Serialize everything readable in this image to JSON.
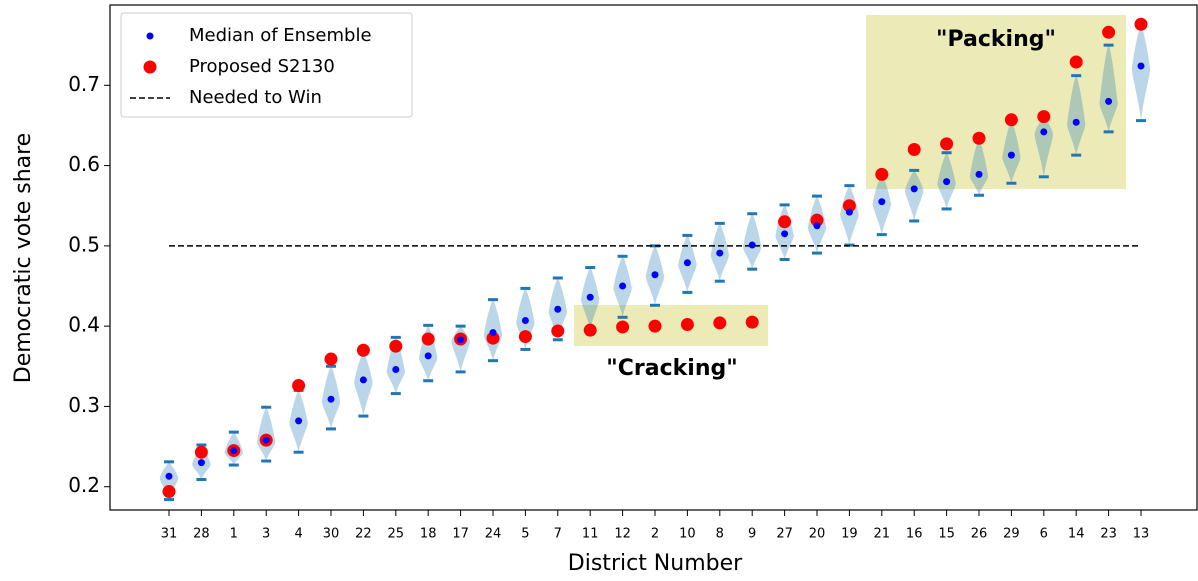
{
  "chart_data": {
    "type": "violin",
    "xlabel": "District Number",
    "ylabel": "Democratic vote share",
    "categories": [
      "31",
      "28",
      "1",
      "3",
      "4",
      "30",
      "22",
      "25",
      "18",
      "17",
      "24",
      "5",
      "7",
      "11",
      "12",
      "2",
      "10",
      "8",
      "9",
      "27",
      "20",
      "19",
      "21",
      "16",
      "15",
      "26",
      "29",
      "6",
      "14",
      "23",
      "13"
    ],
    "ensemble_min": [
      0.184,
      0.209,
      0.227,
      0.232,
      0.243,
      0.272,
      0.288,
      0.316,
      0.332,
      0.343,
      0.357,
      0.371,
      0.383,
      0.395,
      0.411,
      0.426,
      0.442,
      0.456,
      0.471,
      0.483,
      0.491,
      0.501,
      0.514,
      0.531,
      0.546,
      0.563,
      0.578,
      0.586,
      0.613,
      0.642,
      0.656
    ],
    "ensemble_max": [
      0.231,
      0.252,
      0.268,
      0.299,
      0.32,
      0.35,
      0.368,
      0.386,
      0.401,
      0.4,
      0.433,
      0.447,
      0.46,
      0.473,
      0.487,
      0.5,
      0.513,
      0.528,
      0.54,
      0.551,
      0.562,
      0.575,
      0.59,
      0.594,
      0.616,
      0.633,
      0.656,
      0.661,
      0.712,
      0.75,
      0.775
    ],
    "violin_color": "#1f77b4",
    "series": [
      {
        "name": "Median of Ensemble",
        "color": "#0000ff",
        "values": [
          0.213,
          0.23,
          0.245,
          0.258,
          0.282,
          0.309,
          0.333,
          0.346,
          0.363,
          0.383,
          0.392,
          0.407,
          0.421,
          0.436,
          0.45,
          0.464,
          0.479,
          0.491,
          0.501,
          0.515,
          0.525,
          0.542,
          0.555,
          0.571,
          0.58,
          0.589,
          0.613,
          0.642,
          0.654,
          0.68,
          0.724
        ]
      },
      {
        "name": "Proposed S2130",
        "color": "#ff0000",
        "values": [
          0.194,
          0.243,
          0.245,
          0.258,
          0.326,
          0.359,
          0.37,
          0.375,
          0.384,
          0.384,
          0.385,
          0.387,
          0.394,
          0.395,
          0.399,
          0.4,
          0.402,
          0.404,
          0.405,
          0.53,
          0.532,
          0.55,
          0.589,
          0.62,
          0.627,
          0.634,
          0.657,
          0.661,
          0.729,
          0.766,
          0.776
        ]
      },
      {
        "name": "Needed to Win",
        "color": "#000000",
        "value": 0.5
      }
    ],
    "annotations": [
      "\"Packing\"",
      "\"Cracking\""
    ],
    "ylim": [
      0.171,
      0.8
    ],
    "yticks": [
      0.2,
      0.3,
      0.4,
      0.5,
      0.6,
      0.7
    ],
    "legend": "upper left"
  }
}
